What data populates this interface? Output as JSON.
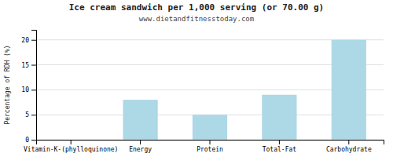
{
  "chart_data": {
    "type": "bar",
    "title": "Ice cream sandwich per 1,000 serving (or 70.00 g)",
    "subtitle": "www.dietandfitnesstoday.com",
    "categories": [
      "Vitamin-K-(phylloquinone)",
      "Energy",
      "Protein",
      "Total-Fat",
      "Carbohydrate"
    ],
    "values": [
      0,
      8,
      5,
      9,
      20
    ],
    "color": "#add8e6",
    "ylabel": "Percentage of RDH (%)",
    "ylim": [
      0,
      22
    ],
    "yticks": [
      0,
      5,
      10,
      15,
      20
    ],
    "grid": true
  }
}
